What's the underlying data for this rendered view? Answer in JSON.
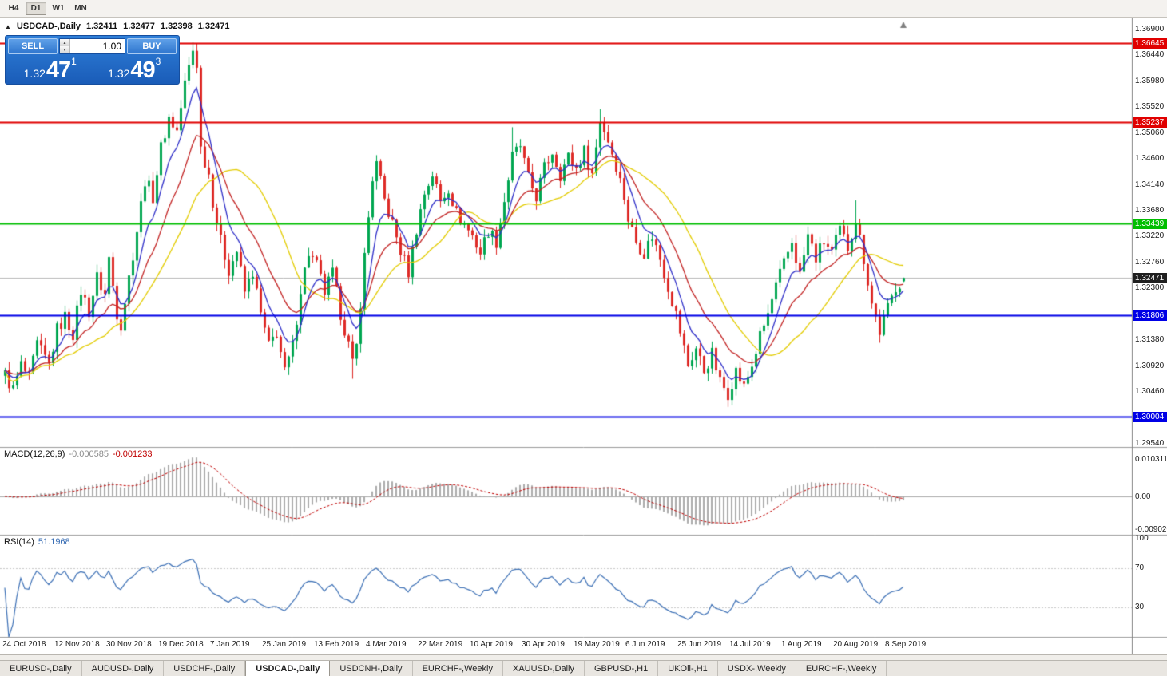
{
  "toolbar": {
    "timeframes": [
      "H4",
      "D1",
      "W1",
      "MN"
    ],
    "active": "D1"
  },
  "chart": {
    "title": "USDCAD-,Daily",
    "ohlc": {
      "open": "1.32411",
      "high": "1.32477",
      "low": "1.32398",
      "close": "1.32471"
    },
    "one_click": {
      "sell_label": "SELL",
      "buy_label": "BUY",
      "volume": "1.00",
      "sell_price_small": "1.32",
      "sell_price_big": "47",
      "sell_price_sup": "1",
      "buy_price_small": "1.32",
      "buy_price_big": "49",
      "buy_price_sup": "3"
    },
    "levels": [
      {
        "price": "1.36645",
        "value": 1.36645,
        "color": "#E00000"
      },
      {
        "price": "1.35237",
        "value": 1.35237,
        "color": "#E00000"
      },
      {
        "price": "1.33439",
        "value": 1.33439,
        "color": "#00BE00"
      },
      {
        "price": "1.31806",
        "value": 1.31806,
        "color": "#0000E6"
      },
      {
        "price": "1.30004",
        "value": 1.30004,
        "color": "#0000E6"
      }
    ],
    "current_price": {
      "price": "1.32471",
      "value": 1.32471,
      "color": "#1F1F1F"
    },
    "price_axis": [
      "1.36900",
      "1.36440",
      "1.35980",
      "1.35520",
      "1.35060",
      "1.34600",
      "1.34140",
      "1.33680",
      "1.33220",
      "1.32760",
      "1.32300",
      "1.31840",
      "1.31380",
      "1.30920",
      "1.30460",
      "1.30000",
      "1.29540"
    ],
    "dates": [
      "24 Oct 2018",
      "12 Nov 2018",
      "30 Nov 2018",
      "19 Dec 2018",
      "7 Jan 2019",
      "25 Jan 2019",
      "13 Feb 2019",
      "4 Mar 2019",
      "22 Mar 2019",
      "10 Apr 2019",
      "30 Apr 2019",
      "19 May 2019",
      "6 Jun 2019",
      "25 Jun 2019",
      "14 Jul 2019",
      "1 Aug 2019",
      "20 Aug 2019",
      "8 Sep 2019"
    ]
  },
  "macd": {
    "label": "MACD(12,26,9)",
    "value_main": "-0.000585",
    "value_signal": "-0.001233",
    "axis": [
      "0.010311",
      "0.00",
      "-0.0090203"
    ]
  },
  "rsi": {
    "label": "RSI(14)",
    "value": "51.1968",
    "axis": [
      "100",
      "70",
      "30"
    ]
  },
  "tabs": {
    "active_index": 3,
    "items": [
      "EURUSD-,Daily",
      "AUDUSD-,Daily",
      "USDCHF-,Daily",
      "USDCAD-,Daily",
      "USDCNH-,Daily",
      "EURCHF-,Weekly",
      "XAUUSD-,Daily",
      "GBPUSD-,H1",
      "UKOil-,H1",
      "USDX-,Weekly",
      "EURCHF-,Weekly"
    ]
  },
  "colors": {
    "up": "#00A651",
    "down": "#DE2B28",
    "ma_fast": "#2D2DC8",
    "ma_mid": "#C22121",
    "ma_slow": "#E3CC00",
    "macd_hist": "#ABABAB",
    "macd_signal": "#C00000",
    "rsi_line": "#3B6FB5",
    "rsi_levels": "#C8C8C8",
    "current_line": "#B8B8B8"
  },
  "chart_data": {
    "type": "candlestick",
    "symbol": "USDCAD",
    "period": "Daily",
    "count": 226,
    "candles_per_label": 13,
    "anchors": [
      [
        0,
        1.3075
      ],
      [
        2,
        1.3048
      ],
      [
        4,
        1.3092
      ],
      [
        6,
        1.3068
      ],
      [
        8,
        1.3128
      ],
      [
        11,
        1.3092
      ],
      [
        13,
        1.3155
      ],
      [
        15,
        1.3178
      ],
      [
        17,
        1.3148
      ],
      [
        19,
        1.3225
      ],
      [
        21,
        1.3188
      ],
      [
        23,
        1.3248
      ],
      [
        25,
        1.3218
      ],
      [
        26,
        1.3282
      ],
      [
        28,
        1.3185
      ],
      [
        29,
        1.3165
      ],
      [
        31,
        1.3248
      ],
      [
        33,
        1.3332
      ],
      [
        35,
        1.3422
      ],
      [
        37,
        1.3392
      ],
      [
        39,
        1.3478
      ],
      [
        41,
        1.3532
      ],
      [
        43,
        1.3508
      ],
      [
        45,
        1.3592
      ],
      [
        47,
        1.3652
      ],
      [
        48,
        1.3628
      ],
      [
        49,
        1.3478
      ],
      [
        51,
        1.3432
      ],
      [
        52,
        1.3385
      ],
      [
        54,
        1.3312
      ],
      [
        56,
        1.3262
      ],
      [
        58,
        1.3295
      ],
      [
        60,
        1.3222
      ],
      [
        62,
        1.3258
      ],
      [
        64,
        1.3182
      ],
      [
        66,
        1.3125
      ],
      [
        68,
        1.3152
      ],
      [
        70,
        1.3078
      ],
      [
        72,
        1.3125
      ],
      [
        74,
        1.3228
      ],
      [
        76,
        1.3292
      ],
      [
        78,
        1.3268
      ],
      [
        80,
        1.3222
      ],
      [
        82,
        1.3255
      ],
      [
        84,
        1.3185
      ],
      [
        86,
        1.3128
      ],
      [
        87,
        1.3092
      ],
      [
        88,
        1.3125
      ],
      [
        90,
        1.3285
      ],
      [
        92,
        1.3425
      ],
      [
        93,
        1.3448
      ],
      [
        95,
        1.3385
      ],
      [
        97,
        1.3342
      ],
      [
        99,
        1.3295
      ],
      [
        101,
        1.3258
      ],
      [
        103,
        1.3335
      ],
      [
        105,
        1.3398
      ],
      [
        107,
        1.3432
      ],
      [
        109,
        1.3382
      ],
      [
        111,
        1.3408
      ],
      [
        113,
        1.3362
      ],
      [
        115,
        1.3342
      ],
      [
        117,
        1.3322
      ],
      [
        119,
        1.3292
      ],
      [
        121,
        1.3332
      ],
      [
        123,
        1.3312
      ],
      [
        125,
        1.3385
      ],
      [
        127,
        1.3462
      ],
      [
        129,
        1.3482
      ],
      [
        131,
        1.3422
      ],
      [
        133,
        1.3392
      ],
      [
        135,
        1.3442
      ],
      [
        137,
        1.3472
      ],
      [
        139,
        1.3432
      ],
      [
        141,
        1.3462
      ],
      [
        143,
        1.3442
      ],
      [
        145,
        1.3472
      ],
      [
        147,
        1.3432
      ],
      [
        149,
        1.3528
      ],
      [
        151,
        1.3492
      ],
      [
        153,
        1.3448
      ],
      [
        155,
        1.3392
      ],
      [
        156,
        1.3352
      ],
      [
        158,
        1.3312
      ],
      [
        160,
        1.3292
      ],
      [
        162,
        1.3322
      ],
      [
        164,
        1.3282
      ],
      [
        166,
        1.3232
      ],
      [
        168,
        1.3182
      ],
      [
        169,
        1.3152
      ],
      [
        171,
        1.3092
      ],
      [
        173,
        1.3122
      ],
      [
        175,
        1.3082
      ],
      [
        177,
        1.3112
      ],
      [
        179,
        1.3062
      ],
      [
        181,
        1.3042
      ],
      [
        183,
        1.3082
      ],
      [
        185,
        1.3052
      ],
      [
        187,
        1.3092
      ],
      [
        189,
        1.3142
      ],
      [
        191,
        1.3182
      ],
      [
        193,
        1.3232
      ],
      [
        195,
        1.3272
      ],
      [
        197,
        1.3312
      ],
      [
        199,
        1.3252
      ],
      [
        201,
        1.3322
      ],
      [
        203,
        1.3282
      ],
      [
        205,
        1.3312
      ],
      [
        207,
        1.3292
      ],
      [
        209,
        1.3332
      ],
      [
        211,
        1.3302
      ],
      [
        213,
        1.3352
      ],
      [
        215,
        1.3282
      ],
      [
        217,
        1.3202
      ],
      [
        219,
        1.3152
      ],
      [
        221,
        1.3192
      ],
      [
        223,
        1.3232
      ],
      [
        225,
        1.32471
      ]
    ],
    "noise": {
      "close": 0.0013,
      "wick": 0.0016
    },
    "forced_high": {
      "47": 1.3664,
      "127": 1.3515,
      "149": 1.3547,
      "213": 1.3385
    },
    "forced_low": {
      "29": 1.3158,
      "87": 1.3068,
      "181": 1.3018,
      "219": 1.3135
    },
    "last_candle": {
      "o": 1.32411,
      "h": 1.32477,
      "l": 1.32398,
      "c": 1.32471
    },
    "moving_averages": [
      {
        "period": 7,
        "type": "ema",
        "color_key": "ma_fast"
      },
      {
        "period": 16,
        "type": "ema",
        "color_key": "ma_mid"
      },
      {
        "period": 26,
        "type": "sma",
        "color_key": "ma_slow"
      }
    ],
    "indicators": {
      "macd": {
        "fast": 12,
        "slow": 26,
        "signal": 9
      },
      "rsi": {
        "period": 14
      }
    }
  }
}
